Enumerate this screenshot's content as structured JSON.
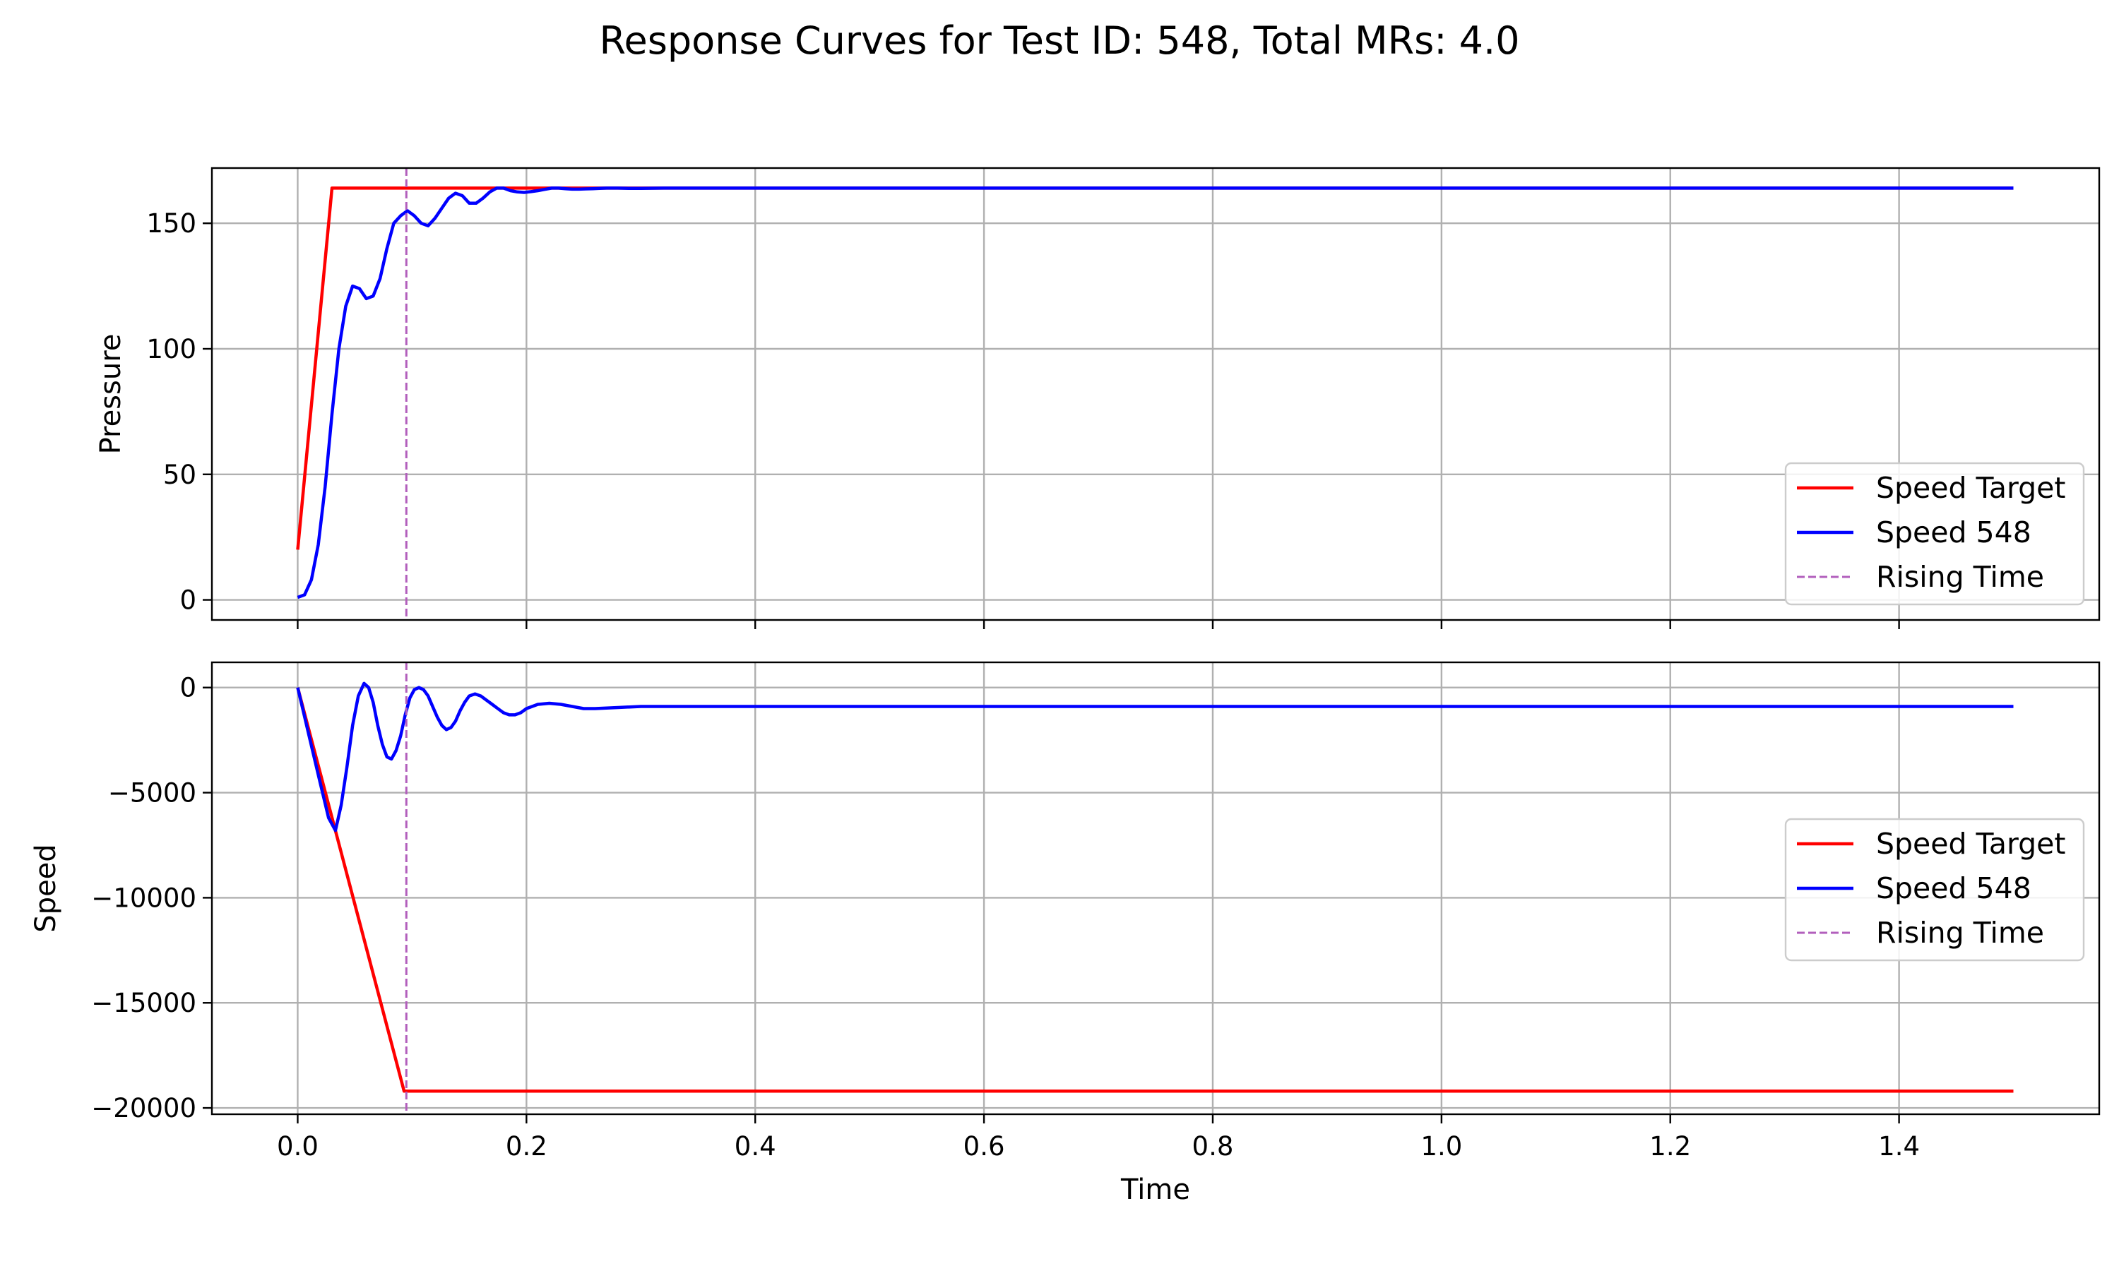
{
  "figure_title": "Response Curves for Test ID: 548, Total MRs: 4.0",
  "colors": {
    "target": "#ff0000",
    "response": "#0000ff",
    "rising": "#b25fbc",
    "grid": "#b0b0b0"
  },
  "chart_data": [
    {
      "type": "line",
      "ylabel": "Pressure",
      "xlabel": "",
      "xlim": [
        -0.075,
        1.575
      ],
      "ylim": [
        -8,
        172
      ],
      "x_ticks": [
        0.0,
        0.2,
        0.4,
        0.6,
        0.8,
        1.0,
        1.2,
        1.4
      ],
      "x_tick_labels": [],
      "y_ticks": [
        0,
        50,
        100,
        150
      ],
      "y_tick_labels": [
        "0",
        "50",
        "100",
        "150"
      ],
      "grid": true,
      "legend_position": "lower-right",
      "rising_time": 0.095,
      "series": [
        {
          "name": "Speed Target",
          "color": "#ff0000",
          "style": "solid",
          "x": [
            0,
            0.03,
            1.5
          ],
          "y": [
            20,
            164,
            164
          ]
        },
        {
          "name": "Speed 548",
          "color": "#0000ff",
          "style": "solid",
          "x": [
            0,
            0.006,
            0.012,
            0.018,
            0.024,
            0.03,
            0.036,
            0.042,
            0.048,
            0.054,
            0.06,
            0.066,
            0.072,
            0.078,
            0.084,
            0.09,
            0.096,
            0.102,
            0.108,
            0.114,
            0.12,
            0.126,
            0.132,
            0.138,
            0.144,
            0.15,
            0.156,
            0.162,
            0.168,
            0.174,
            0.18,
            0.186,
            0.192,
            0.198,
            0.204,
            0.21,
            0.216,
            0.222,
            0.228,
            0.234,
            0.24,
            0.246,
            0.252,
            0.258,
            0.264,
            0.27,
            0.28,
            0.29,
            0.3,
            0.32,
            0.34,
            0.36,
            0.38,
            0.4,
            1.5
          ],
          "y": [
            1,
            2,
            8,
            22,
            45,
            74,
            100,
            117,
            125,
            124,
            120,
            121,
            128,
            140,
            150,
            153,
            155,
            153,
            150,
            149,
            152,
            156,
            160,
            162,
            161,
            158,
            158,
            160,
            162.5,
            164,
            164,
            163,
            162.5,
            162.3,
            162.6,
            163,
            163.5,
            164,
            164,
            163.8,
            163.6,
            163.6,
            163.7,
            163.8,
            163.9,
            164,
            164,
            163.9,
            163.9,
            164,
            164,
            164,
            164,
            164,
            164
          ]
        },
        {
          "name": "Rising Time",
          "color": "#b25fbc",
          "style": "dashed"
        }
      ]
    },
    {
      "type": "line",
      "ylabel": "Speed",
      "xlabel": "Time",
      "xlim": [
        -0.075,
        1.575
      ],
      "ylim": [
        -20300,
        1200
      ],
      "x_ticks": [
        0.0,
        0.2,
        0.4,
        0.6,
        0.8,
        1.0,
        1.2,
        1.4
      ],
      "x_tick_labels": [
        "0.0",
        "0.2",
        "0.4",
        "0.6",
        "0.8",
        "1.0",
        "1.2",
        "1.4"
      ],
      "y_ticks": [
        0,
        -5000,
        -10000,
        -15000,
        -20000
      ],
      "y_tick_labels": [
        "0",
        "−5000",
        "−10000",
        "−15000",
        "−20000"
      ],
      "grid": true,
      "legend_position": "center-right",
      "rising_time": 0.095,
      "series": [
        {
          "name": "Speed Target",
          "color": "#ff0000",
          "style": "solid",
          "x": [
            0,
            0.093,
            1.5
          ],
          "y": [
            0,
            -19200,
            -19200
          ]
        },
        {
          "name": "Speed 548",
          "color": "#0000ff",
          "style": "solid",
          "x": [
            0,
            0.01,
            0.02,
            0.027,
            0.033,
            0.038,
            0.043,
            0.048,
            0.053,
            0.058,
            0.062,
            0.066,
            0.07,
            0.074,
            0.078,
            0.082,
            0.086,
            0.09,
            0.094,
            0.098,
            0.102,
            0.106,
            0.11,
            0.114,
            0.118,
            0.122,
            0.126,
            0.13,
            0.134,
            0.138,
            0.142,
            0.146,
            0.15,
            0.155,
            0.16,
            0.165,
            0.17,
            0.175,
            0.18,
            0.185,
            0.19,
            0.195,
            0.2,
            0.21,
            0.22,
            0.23,
            0.24,
            0.25,
            0.26,
            0.28,
            0.3,
            0.32,
            0.35,
            0.4,
            1.5
          ],
          "y": [
            0,
            -2300,
            -4600,
            -6200,
            -6800,
            -5600,
            -3800,
            -1800,
            -400,
            200,
            0,
            -700,
            -1800,
            -2700,
            -3300,
            -3400,
            -3000,
            -2300,
            -1300,
            -500,
            -100,
            0,
            -100,
            -400,
            -900,
            -1400,
            -1800,
            -2000,
            -1900,
            -1600,
            -1100,
            -700,
            -400,
            -300,
            -400,
            -600,
            -800,
            -1000,
            -1200,
            -1300,
            -1300,
            -1200,
            -1000,
            -800,
            -750,
            -800,
            -900,
            -1000,
            -1000,
            -950,
            -900,
            -900,
            -900,
            -900,
            -900
          ]
        },
        {
          "name": "Rising Time",
          "color": "#b25fbc",
          "style": "dashed"
        }
      ]
    }
  ]
}
